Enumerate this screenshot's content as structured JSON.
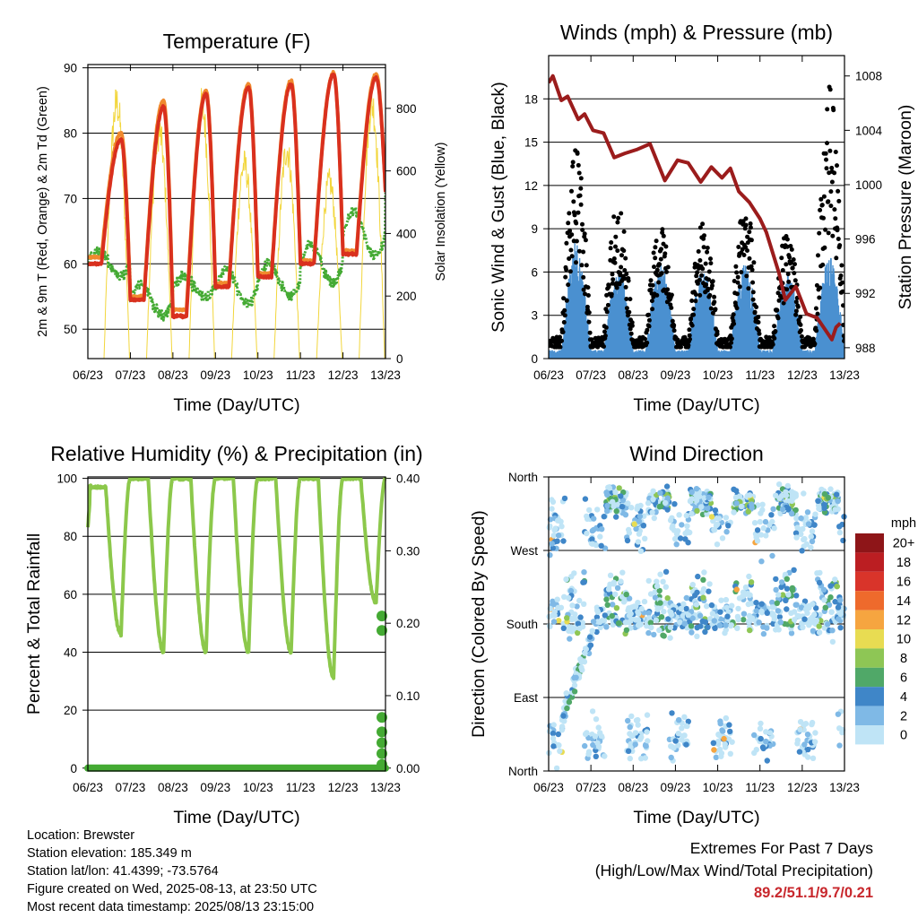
{
  "meta": {
    "location": "Location: Brewster",
    "elevation": "Station elevation: 185.349 m",
    "latlon": "Station lat/lon: 41.4399; -73.5764",
    "created": "Figure created on Wed, 2025-08-13, at 23:50 UTC",
    "recent": "Most recent data timestamp: 2025/08/13 23:15:00"
  },
  "extremes": {
    "title": "Extremes For Past 7 Days",
    "subtitle": "(High/Low/Max Wind/Total Precipitation)",
    "values": "89.2/51.1/9.7/0.21"
  },
  "chart_data": [
    {
      "type": "line",
      "title": "Temperature (F)",
      "xlabel": "Time (Day/UTC)",
      "ylabel": "2m & 9m T (Red, Orange) & 2m Td (Green)",
      "ylabel_right": "Solar Insolation (Yellow)",
      "x_ticks": [
        "06/23",
        "07/23",
        "08/23",
        "09/23",
        "10/23",
        "11/23",
        "12/23",
        "13/23"
      ],
      "xlim": [
        0,
        7
      ],
      "ylim": [
        45.5,
        90.5
      ],
      "y_ticks": [
        50,
        60,
        70,
        80,
        90
      ],
      "ylim_right": [
        0,
        940
      ],
      "y_ticks_right": [
        0,
        200,
        400,
        600,
        800
      ],
      "grid": "horizontal",
      "series": [
        {
          "color": "#d9301e",
          "day_min": [
            60,
            54.5,
            52,
            56.5,
            58,
            60,
            61.5,
            71
          ],
          "day_max": [
            79,
            84,
            86,
            87,
            87.5,
            89,
            88.5
          ]
        },
        {
          "color": "#f08a2e",
          "day_min": [
            61,
            55,
            53,
            57,
            58.5,
            60.5,
            62,
            71
          ],
          "day_max": [
            80,
            85,
            86.5,
            87.5,
            88,
            89.2,
            89
          ]
        },
        {
          "color": "#44aa33",
          "day_min": [
            58,
            52,
            55,
            54,
            55,
            57,
            61,
            67
          ],
          "day_max": [
            62,
            57,
            58,
            59,
            60,
            63,
            68,
            74
          ]
        },
        {
          "color": "#f2d63c",
          "day_peak": [
            880,
            780,
            870,
            670,
            720,
            610,
            880
          ]
        }
      ]
    },
    {
      "type": "scatter",
      "title": "Winds (mph) & Pressure (mb)",
      "xlabel": "Time (Day/UTC)",
      "ylabel": "Sonic Wind & Gust (Blue, Black)",
      "ylabel_right": "Station Pressure (Maroon)",
      "x_ticks": [
        "06/23",
        "07/23",
        "08/23",
        "09/23",
        "10/23",
        "11/23",
        "12/23",
        "13/23"
      ],
      "xlim": [
        0,
        7
      ],
      "ylim": [
        0,
        21
      ],
      "y_ticks": [
        0,
        3,
        6,
        9,
        12,
        15,
        18
      ],
      "ylim_right": [
        987.2,
        1009.5
      ],
      "y_ticks_right": [
        988,
        992,
        996,
        1000,
        1004,
        1008
      ],
      "grid": "horizontal",
      "series": [
        {
          "color": "#4a90d0",
          "day_peak": [
            7.5,
            5.5,
            6,
            5.5,
            6,
            5.5,
            6.5
          ]
        },
        {
          "color": "#000000",
          "day_peak": [
            14.5,
            11,
            9.5,
            9.5,
            11,
            9,
            19
          ]
        },
        {
          "color": "#9b1c1c",
          "points": [
            [
              0,
              1007.5
            ],
            [
              0.1,
              1008
            ],
            [
              0.3,
              1006.2
            ],
            [
              0.45,
              1006.5
            ],
            [
              0.7,
              1004.8
            ],
            [
              0.85,
              1005.2
            ],
            [
              1.05,
              1004
            ],
            [
              1.3,
              1003.8
            ],
            [
              1.55,
              1002
            ],
            [
              1.8,
              1002.3
            ],
            [
              2.1,
              1002.6
            ],
            [
              2.4,
              1003
            ],
            [
              2.75,
              1000.3
            ],
            [
              3.05,
              1001.8
            ],
            [
              3.3,
              1001.6
            ],
            [
              3.6,
              1000.2
            ],
            [
              3.85,
              1001.3
            ],
            [
              4.1,
              1000.5
            ],
            [
              4.3,
              1001.2
            ],
            [
              4.5,
              999.5
            ],
            [
              4.75,
              998.7
            ],
            [
              5.0,
              997.5
            ],
            [
              5.15,
              996.5
            ],
            [
              5.45,
              993.5
            ],
            [
              5.6,
              991.5
            ],
            [
              5.85,
              992.5
            ],
            [
              6.1,
              990.5
            ],
            [
              6.35,
              990.2
            ],
            [
              6.55,
              989.3
            ],
            [
              6.7,
              988.6
            ],
            [
              6.8,
              989.5
            ],
            [
              6.9,
              989.8
            ]
          ]
        }
      ]
    },
    {
      "type": "line",
      "title": "Relative Humidity (%) & Precipitation (in)",
      "xlabel": "Time (Day/UTC)",
      "ylabel": "Percent & Total Rainfall",
      "x_ticks": [
        "06/23",
        "07/23",
        "08/23",
        "09/23",
        "10/23",
        "11/23",
        "12/23",
        "13/23"
      ],
      "xlim": [
        0,
        7
      ],
      "ylim": [
        -1,
        100.5
      ],
      "y_ticks": [
        0,
        20,
        40,
        60,
        80,
        100
      ],
      "ylim_right": [
        -0.004,
        0.402
      ],
      "y_ticks_right": [
        "0.00",
        "0.10",
        "0.20",
        "0.30",
        "0.40"
      ],
      "grid": "horizontal",
      "series": [
        {
          "color": "#8cc84b",
          "day_max": [
            97,
            100,
            100,
            100,
            100,
            100,
            100,
            100
          ],
          "day_min": [
            46,
            40,
            40,
            40,
            40,
            31,
            57
          ]
        },
        {
          "color": "#44aa33",
          "precip_total": [
            0,
            0,
            0,
            0,
            0,
            0,
            0,
            0.21
          ]
        }
      ]
    },
    {
      "type": "scatter",
      "title": "Wind Direction",
      "xlabel": "Time (Day/UTC)",
      "ylabel": "Direction (Colored By Speed)",
      "x_ticks": [
        "06/23",
        "07/23",
        "08/23",
        "09/23",
        "10/23",
        "11/23",
        "12/23",
        "13/23"
      ],
      "xlim": [
        0,
        7
      ],
      "ylim": [
        0,
        360
      ],
      "y_ticks": [
        "North",
        "East",
        "South",
        "West",
        "North"
      ],
      "grid": "horizontal",
      "legend": {
        "title": "mph",
        "labels": [
          "0",
          "2",
          "4",
          "6",
          "8",
          "10",
          "12",
          "14",
          "16",
          "18",
          "20+"
        ],
        "colors": [
          "#bfe4f6",
          "#7fb9e6",
          "#3f86c8",
          "#50a868",
          "#8ec655",
          "#e8dc52",
          "#f6a540",
          "#ee6a2c",
          "#d9342a",
          "#bb1e22",
          "#8e1518"
        ]
      }
    }
  ]
}
